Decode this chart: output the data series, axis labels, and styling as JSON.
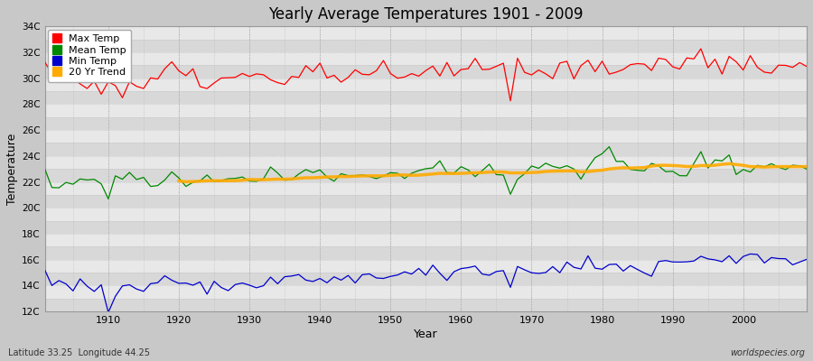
{
  "title": "Yearly Average Temperatures 1901 - 2009",
  "xlabel": "Year",
  "ylabel": "Temperature",
  "footnote_left": "Latitude 33.25  Longitude 44.25",
  "footnote_right": "worldspecies.org",
  "year_start": 1901,
  "year_end": 2009,
  "ytick_vals": [
    12,
    13,
    14,
    15,
    16,
    17,
    18,
    19,
    20,
    21,
    22,
    23,
    24,
    25,
    26,
    27,
    28,
    29,
    30,
    31,
    32,
    33,
    34
  ],
  "ytick_labels": [
    "12C",
    "",
    "14C",
    "",
    "16C",
    "",
    "18C",
    "",
    "20C",
    "",
    "22C",
    "",
    "24C",
    "",
    "26C",
    "",
    "28C",
    "",
    "30C",
    "",
    "32C",
    "",
    "34C"
  ],
  "ylim": [
    12,
    34
  ],
  "xlim_start": 1901,
  "xlim_end": 2009,
  "bg_color": "#c8c8c8",
  "plot_bg_color": "#e8e8e8",
  "grid_color_major": "#c0c0c0",
  "grid_color_minor": "#d8d8d8",
  "max_temp_color": "#ff0000",
  "mean_temp_color": "#008800",
  "min_temp_color": "#0000cc",
  "trend_color": "#ffaa00",
  "legend_labels": [
    "Max Temp",
    "Mean Temp",
    "Min Temp",
    "20 Yr Trend"
  ]
}
